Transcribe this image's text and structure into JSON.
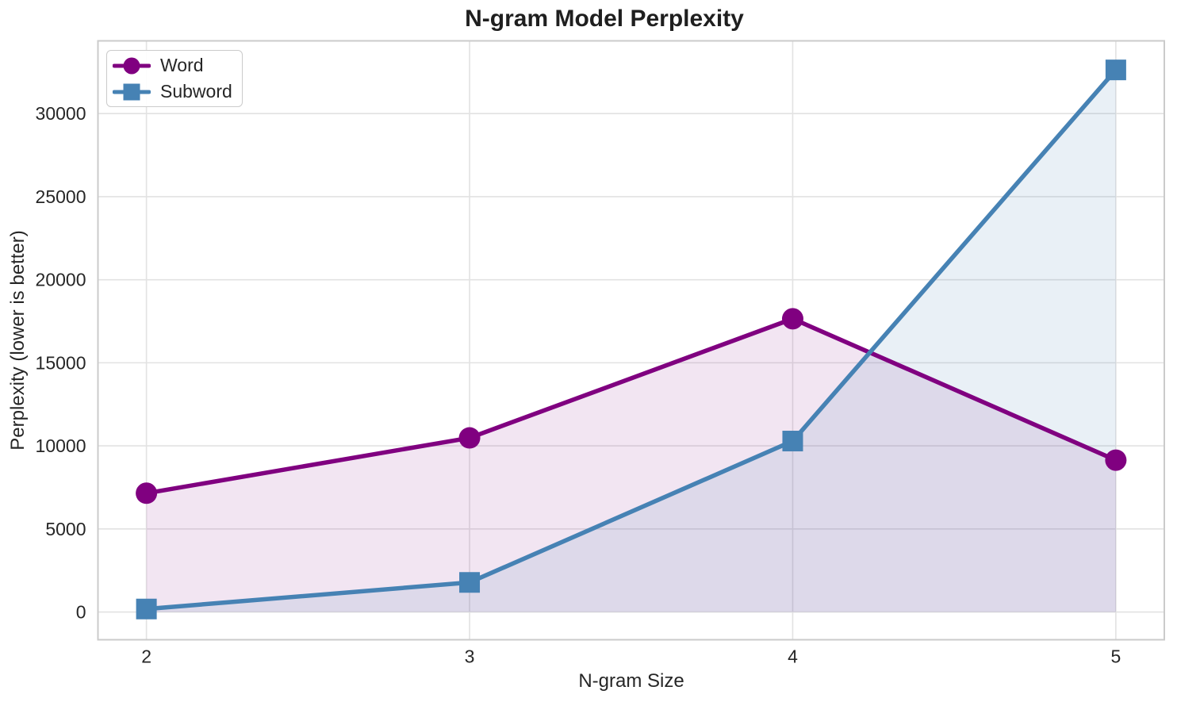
{
  "chart_data": {
    "type": "line",
    "title": "N-gram Model Perplexity",
    "xlabel": "N-gram Size",
    "ylabel": "Perplexity (lower is better)",
    "x": [
      2,
      3,
      4,
      5
    ],
    "series": [
      {
        "name": "Word",
        "marker": "circle",
        "color": "#800080",
        "fill_alpha": 0.1,
        "values": [
          7150,
          10480,
          17650,
          9140
        ]
      },
      {
        "name": "Subword",
        "marker": "square",
        "color": "#4682B4",
        "fill_alpha": 0.12,
        "values": [
          180,
          1780,
          10290,
          32630
        ]
      }
    ],
    "area_baseline": 0,
    "xlim": [
      1.85,
      5.15
    ],
    "ylim": [
      -1670,
      34380
    ],
    "xticks": [
      2,
      3,
      4,
      5
    ],
    "xtick_labels": [
      "2",
      "3",
      "4",
      "5"
    ],
    "yticks": [
      0,
      5000,
      10000,
      15000,
      20000,
      25000,
      30000
    ],
    "ytick_labels": [
      "0",
      "5000",
      "10000",
      "15000",
      "20000",
      "25000",
      "30000"
    ],
    "grid": true,
    "legend_position": "upper-left",
    "colors": {
      "grid": "#e2e2e2",
      "spine": "#cbcbcb",
      "text": "#262626",
      "title": "#1f1f1f",
      "background": "#ffffff"
    }
  }
}
